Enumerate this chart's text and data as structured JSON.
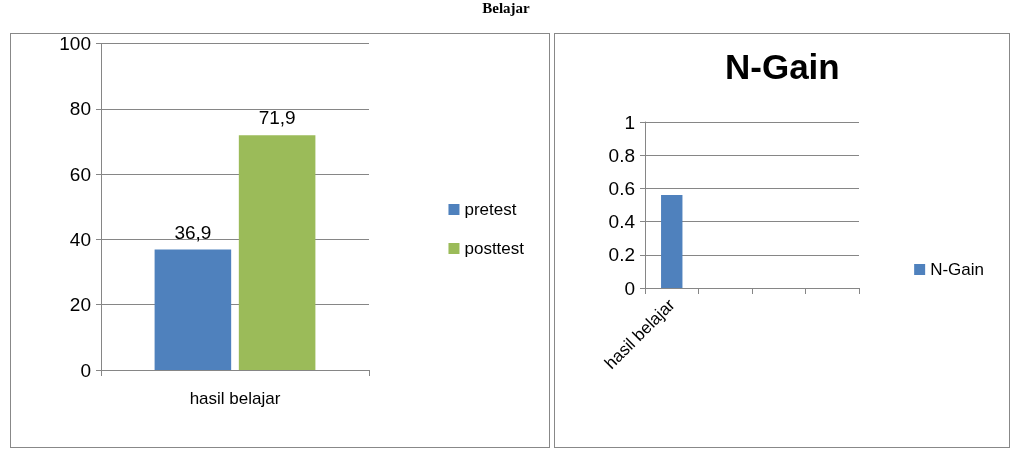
{
  "chart_data": [
    {
      "type": "bar",
      "categories": [
        "hasil belajar"
      ],
      "annotations": [
        "Belajar"
      ],
      "series": [
        {
          "name": "pretest",
          "color": "#4f81bd",
          "values": [
            36.9
          ],
          "value_labels": [
            "36,9"
          ]
        },
        {
          "name": "posttest",
          "color": "#9bbb59",
          "values": [
            71.9
          ],
          "value_labels": [
            "71,9"
          ]
        }
      ],
      "ylim": [
        0,
        100
      ],
      "yticks": [
        0,
        20,
        40,
        60,
        80,
        100
      ],
      "grid": "y",
      "legend": "right"
    },
    {
      "type": "bar",
      "title": "N-Gain",
      "categories": [
        "hasil belajar",
        null,
        null,
        null
      ],
      "series": [
        {
          "name": "N-Gain",
          "color": "#4f81bd",
          "values": [
            0.56,
            null,
            null,
            null
          ]
        }
      ],
      "ylim": [
        0,
        1
      ],
      "yticks": [
        0,
        0.2,
        0.4,
        0.6,
        0.8,
        1
      ],
      "grid": "y",
      "legend": "right"
    }
  ]
}
